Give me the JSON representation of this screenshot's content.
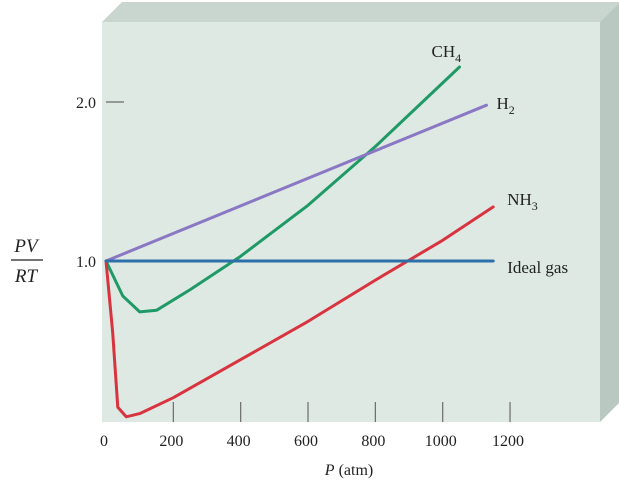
{
  "chart_data": {
    "type": "line",
    "xlabel_var": "P",
    "xlabel_unit": " (atm)",
    "ylabel_numerator": "PV",
    "ylabel_denominator": "RT",
    "x_ticks": [
      "0",
      "200",
      "400",
      "600",
      "800",
      "1000",
      "1200"
    ],
    "y_ticks": [
      "1.0",
      "2.0"
    ],
    "xlim": [
      0,
      1400
    ],
    "ylim": [
      0,
      2.5
    ],
    "grid": false,
    "colors": {
      "panel": "#dfe9e3",
      "panel_top": "#c9d6cf",
      "panel_side": "#b9c8c0",
      "axis": "#6a6a6a"
    },
    "series": [
      {
        "name": "CH",
        "subscript": "4",
        "color": "#1f9a66",
        "points": [
          [
            0,
            1.0
          ],
          [
            50,
            0.78
          ],
          [
            100,
            0.68
          ],
          [
            150,
            0.69
          ],
          [
            250,
            0.82
          ],
          [
            400,
            1.03
          ],
          [
            600,
            1.35
          ],
          [
            800,
            1.72
          ],
          [
            1000,
            2.12
          ],
          [
            1050,
            2.22
          ]
        ]
      },
      {
        "name": "H",
        "subscript": "2",
        "color": "#8a78c4",
        "points": [
          [
            0,
            1.0
          ],
          [
            1130,
            1.98
          ]
        ]
      },
      {
        "name": "NH",
        "subscript": "3",
        "color": "#d8343f",
        "points": [
          [
            0,
            1.0
          ],
          [
            20,
            0.55
          ],
          [
            35,
            0.08
          ],
          [
            60,
            0.02
          ],
          [
            100,
            0.04
          ],
          [
            200,
            0.14
          ],
          [
            400,
            0.38
          ],
          [
            600,
            0.62
          ],
          [
            800,
            0.88
          ],
          [
            1000,
            1.13
          ],
          [
            1150,
            1.34
          ]
        ]
      },
      {
        "name": "Ideal gas",
        "subscript": "",
        "color": "#2d6fa8",
        "points": [
          [
            0,
            1.0
          ],
          [
            1150,
            1.0
          ]
        ]
      }
    ]
  }
}
